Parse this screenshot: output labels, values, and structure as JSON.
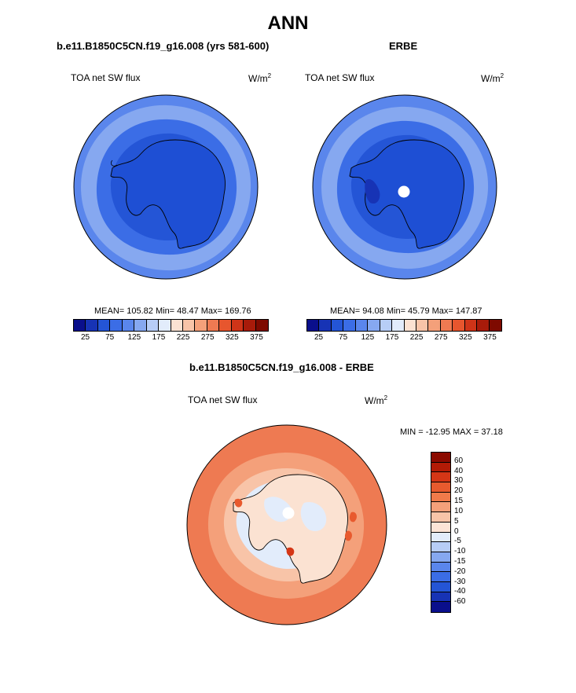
{
  "page": {
    "title": "ANN"
  },
  "panel_model": {
    "case": "b.e11.B1850C5CN.f19_g16.008 (yrs 581-600)",
    "variable": "TOA net SW flux",
    "units": "W/m",
    "units_exp": "2",
    "stats": "MEAN= 105.82  Min=  48.47  Max= 169.76"
  },
  "panel_obs": {
    "case": "ERBE",
    "variable": "TOA net SW flux",
    "units": "W/m",
    "units_exp": "2",
    "stats": "MEAN=  94.08  Min=  45.79  Max= 147.87"
  },
  "panel_diff": {
    "case": "b.e11.B1850C5CN.f19_g16.008 - ERBE",
    "variable": "TOA net SW flux",
    "units": "W/m",
    "units_exp": "2",
    "stats": "MIN = -12.95 MAX =  37.18"
  },
  "colorbar_abs": {
    "colors": [
      "#0a0f8c",
      "#1733b5",
      "#2455d6",
      "#3b6de6",
      "#5a86ec",
      "#86a8f0",
      "#b7cdf6",
      "#e2ecfb",
      "#fbe2d2",
      "#f8c4a8",
      "#f4a07a",
      "#ee7a52",
      "#e7562e",
      "#cf3418",
      "#a81b0a",
      "#7e0a00"
    ],
    "tick_labels": [
      "25",
      "75",
      "125",
      "175",
      "225",
      "275",
      "325",
      "375"
    ]
  },
  "colorbar_diff": {
    "colors": [
      "#8b0a00",
      "#b31b06",
      "#d53616",
      "#e85a2e",
      "#f07a4a",
      "#f4a07a",
      "#f8c4a8",
      "#fce4d6",
      "#e2ecfb",
      "#b7cdf6",
      "#86a8f0",
      "#5a86ec",
      "#3b6de6",
      "#2455d6",
      "#1733b5",
      "#0a0f8c"
    ],
    "tick_labels": [
      "60",
      "40",
      "30",
      "20",
      "15",
      "10",
      "5",
      "0",
      "-5",
      "-10",
      "-15",
      "-20",
      "-30",
      "-40",
      "-60"
    ]
  },
  "map_fill_colors": {
    "abs_outer": "#5a86ec",
    "abs_ring1": "#86a8f0",
    "abs_ring2": "#3b6de6",
    "abs_ring3": "#2455d6",
    "abs_antarctica": "#1e4fd4",
    "diff_outer": "#ee7a52",
    "diff_ring1": "#f4a07a",
    "diff_ring2": "#f8c4a8",
    "diff_inner": "#e2ecfb",
    "diff_land": "#fbe2d2"
  }
}
